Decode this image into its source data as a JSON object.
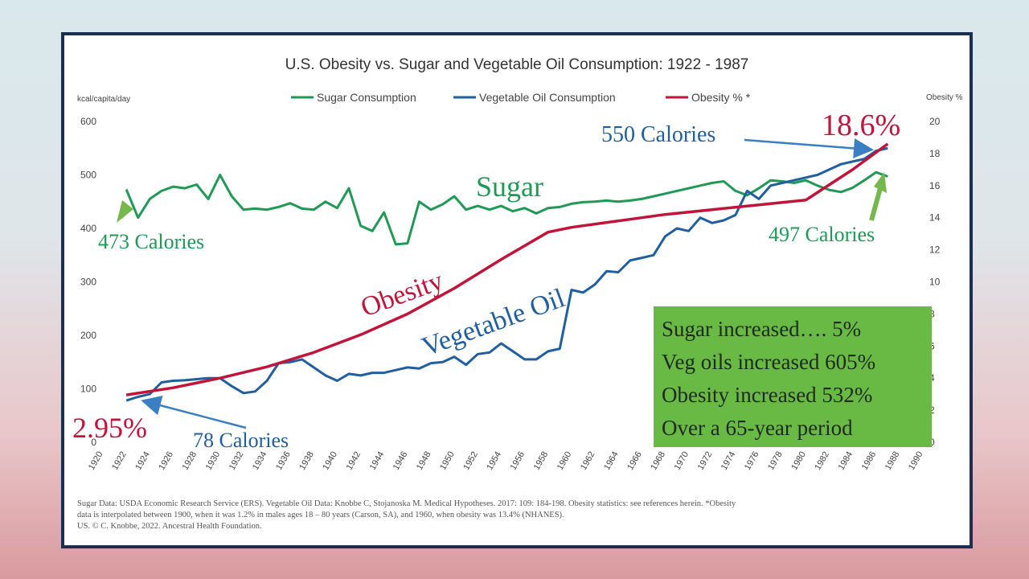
{
  "chart_data": {
    "type": "line",
    "title": "U.S. Obesity vs. Sugar and Vegetable Oil Consumption: 1922 - 1987",
    "ylabel_left": "kcal/capita/day",
    "ylabel_right": "Obesity %",
    "ylim_left": [
      0,
      600
    ],
    "ylim_right": [
      0,
      20
    ],
    "yticks_left": [
      "0",
      "100",
      "200",
      "300",
      "400",
      "500",
      "600"
    ],
    "yticks_right": [
      "0",
      "2",
      "4",
      "6",
      "8",
      "10",
      "12",
      "14",
      "16",
      "18",
      "20"
    ],
    "xlim": [
      1920,
      1990
    ],
    "xticks": [
      "1920",
      "1922",
      "1924",
      "1926",
      "1928",
      "1930",
      "1932",
      "1934",
      "1936",
      "1938",
      "1940",
      "1942",
      "1944",
      "1946",
      "1948",
      "1950",
      "1952",
      "1954",
      "1956",
      "1958",
      "1960",
      "1962",
      "1964",
      "1966",
      "1968",
      "1970",
      "1972",
      "1974",
      "1976",
      "1978",
      "1980",
      "1982",
      "1984",
      "1986",
      "1988",
      "1990"
    ],
    "legend": [
      "Sugar Consumption",
      "Vegetable Oil Consumption",
      "Obesity % *"
    ],
    "legend_position": "top",
    "grid": false,
    "colors": {
      "sugar": "#1f9a55",
      "veg_oil": "#1f5fa0",
      "obesity": "#c2133a"
    },
    "series": [
      {
        "name": "Sugar Consumption",
        "axis": "left",
        "color": "#1f9a55",
        "x": [
          1922,
          1923,
          1924,
          1925,
          1926,
          1927,
          1928,
          1929,
          1930,
          1931,
          1932,
          1933,
          1934,
          1935,
          1936,
          1937,
          1938,
          1939,
          1940,
          1941,
          1942,
          1943,
          1944,
          1945,
          1946,
          1947,
          1948,
          1949,
          1950,
          1951,
          1952,
          1953,
          1954,
          1955,
          1956,
          1957,
          1958,
          1959,
          1960,
          1961,
          1962,
          1963,
          1964,
          1965,
          1966,
          1967,
          1968,
          1969,
          1970,
          1971,
          1972,
          1973,
          1974,
          1975,
          1976,
          1977,
          1978,
          1979,
          1980,
          1981,
          1982,
          1983,
          1984,
          1985,
          1986,
          1987
        ],
        "y": [
          473,
          420,
          455,
          470,
          478,
          475,
          482,
          455,
          500,
          460,
          435,
          437,
          435,
          440,
          447,
          437,
          435,
          450,
          438,
          475,
          405,
          395,
          430,
          370,
          372,
          450,
          435,
          445,
          460,
          435,
          442,
          435,
          442,
          432,
          438,
          428,
          438,
          440,
          446,
          449,
          450,
          452,
          450,
          452,
          455,
          460,
          465,
          470,
          475,
          480,
          485,
          488,
          470,
          462,
          475,
          490,
          488,
          485,
          490,
          480,
          472,
          468,
          476,
          490,
          505,
          497
        ]
      },
      {
        "name": "Vegetable Oil Consumption",
        "axis": "left",
        "color": "#1f5fa0",
        "x": [
          1922,
          1923,
          1924,
          1925,
          1926,
          1927,
          1928,
          1929,
          1930,
          1931,
          1932,
          1933,
          1934,
          1935,
          1936,
          1937,
          1938,
          1939,
          1940,
          1941,
          1942,
          1943,
          1944,
          1945,
          1946,
          1947,
          1948,
          1949,
          1950,
          1951,
          1952,
          1953,
          1954,
          1955,
          1956,
          1957,
          1958,
          1959,
          1960,
          1961,
          1962,
          1963,
          1964,
          1965,
          1966,
          1967,
          1968,
          1969,
          1970,
          1971,
          1972,
          1973,
          1974,
          1975,
          1976,
          1977,
          1978,
          1979,
          1980,
          1981,
          1982,
          1983,
          1984,
          1985,
          1986,
          1987
        ],
        "y": [
          78,
          85,
          90,
          112,
          115,
          116,
          118,
          120,
          120,
          105,
          92,
          95,
          115,
          148,
          150,
          155,
          140,
          125,
          115,
          128,
          125,
          130,
          130,
          135,
          140,
          138,
          148,
          150,
          160,
          145,
          165,
          168,
          185,
          170,
          155,
          155,
          170,
          175,
          285,
          280,
          295,
          320,
          318,
          340,
          345,
          350,
          385,
          400,
          395,
          420,
          410,
          415,
          425,
          470,
          455,
          480,
          485,
          490,
          495,
          500,
          510,
          520,
          525,
          530,
          545,
          550
        ]
      },
      {
        "name": "Obesity % *",
        "axis": "right",
        "color": "#c2133a",
        "x": [
          1922,
          1926,
          1930,
          1934,
          1938,
          1942,
          1946,
          1950,
          1954,
          1958,
          1960,
          1964,
          1968,
          1972,
          1976,
          1980,
          1984,
          1987
        ],
        "y": [
          2.95,
          3.4,
          4.0,
          4.7,
          5.6,
          6.7,
          8.0,
          9.6,
          11.4,
          13.1,
          13.4,
          13.8,
          14.2,
          14.5,
          14.8,
          15.1,
          17.0,
          18.6
        ]
      }
    ],
    "annotations": [
      {
        "text": "Sugar",
        "color": "#1f9a55"
      },
      {
        "text": "Obesity",
        "color": "#c2133a"
      },
      {
        "text": "Vegetable Oil",
        "color": "#1f5fa0"
      },
      {
        "text": "473 Calories",
        "color": "#1f9a55"
      },
      {
        "text": "497 Calories",
        "color": "#1f9a55"
      },
      {
        "text": "550 Calories",
        "color": "#1f5fa0"
      },
      {
        "text": "78 Calories",
        "color": "#1f5fa0"
      },
      {
        "text": "18.6%",
        "color": "#c2133a"
      },
      {
        "text": "2.95%",
        "color": "#c2133a"
      }
    ]
  },
  "summary": {
    "lines": [
      "Sugar increased….  5%",
      "Veg oils increased 605%",
      "Obesity increased 532%",
      "Over a 65-year period"
    ],
    "background": "#69b945"
  },
  "source_note": {
    "lines": [
      "Sugar Data:  USDA Economic Research Service (ERS).  Vegetable Oil Data:  Knobbe C, Stojanoska M. Medical Hypotheses. 2017: 109: 184-198. Obesity statistics: see references herein.   *Obesity",
      "data is interpolated between 1900, when it was 1.2% in males ages 18 – 80 years (Carson, SA), and 1960, when obesity was 13.4% (NHANES).",
      "US. © C. Knobbe, 2022. Ancestral Health Foundation."
    ]
  }
}
